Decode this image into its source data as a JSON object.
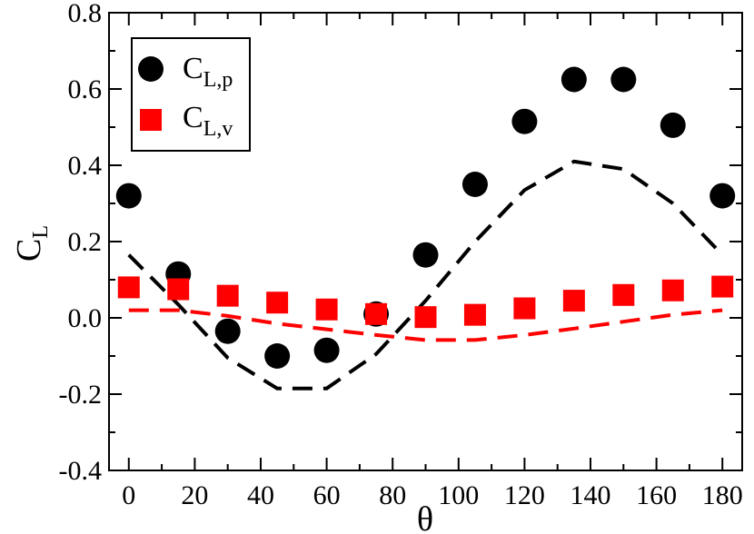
{
  "chart_data": {
    "type": "scatter",
    "title": "",
    "xlabel": "θ",
    "ylabel_main": "C",
    "ylabel_sub": "L",
    "xlim": [
      -6,
      186
    ],
    "ylim": [
      -0.4,
      0.8
    ],
    "x_ticks": [
      0,
      20,
      40,
      60,
      80,
      100,
      120,
      140,
      160,
      180
    ],
    "x_tick_labels": [
      "0",
      "20",
      "40",
      "60",
      "80",
      "100",
      "120",
      "140",
      "160",
      "180"
    ],
    "y_ticks": [
      -0.4,
      -0.2,
      0.0,
      0.2,
      0.4,
      0.6,
      0.8
    ],
    "y_tick_labels": [
      "-0.4",
      "-0.2",
      "0.0",
      "0.2",
      "0.4",
      "0.6",
      "0.8"
    ],
    "grid": false,
    "legend_position": "top-left",
    "series": [
      {
        "name": "C_L,p",
        "label_main": "C",
        "label_sub": "L,p",
        "style": "markers",
        "marker": "circle",
        "color": "#000000",
        "x": [
          0,
          15,
          30,
          45,
          60,
          75,
          90,
          105,
          120,
          135,
          150,
          165,
          180
        ],
        "y": [
          0.32,
          0.115,
          -0.035,
          -0.1,
          -0.085,
          0.01,
          0.165,
          0.35,
          0.515,
          0.625,
          0.625,
          0.505,
          0.32
        ]
      },
      {
        "name": "C_L,v",
        "label_main": "C",
        "label_sub": "L,v",
        "style": "markers",
        "marker": "square",
        "color": "#ff0000",
        "x": [
          0,
          15,
          30,
          45,
          60,
          75,
          90,
          105,
          120,
          135,
          150,
          165,
          180
        ],
        "y": [
          0.08,
          0.075,
          0.058,
          0.04,
          0.022,
          0.01,
          0.002,
          0.008,
          0.025,
          0.045,
          0.06,
          0.072,
          0.082
        ]
      },
      {
        "name": "C_L,p (dashed curve)",
        "style": "dashed-line",
        "color": "#000000",
        "x": [
          0,
          15,
          30,
          45,
          60,
          75,
          90,
          105,
          120,
          135,
          150,
          165,
          180
        ],
        "y": [
          0.165,
          0.035,
          -0.105,
          -0.185,
          -0.185,
          -0.095,
          0.045,
          0.2,
          0.335,
          0.41,
          0.39,
          0.3,
          0.165
        ]
      },
      {
        "name": "C_L,v (dashed curve)",
        "style": "dashed-line",
        "color": "#ff0000",
        "x": [
          0,
          15,
          30,
          45,
          60,
          75,
          90,
          105,
          120,
          135,
          150,
          165,
          180
        ],
        "y": [
          0.02,
          0.02,
          0.005,
          -0.015,
          -0.03,
          -0.045,
          -0.058,
          -0.058,
          -0.045,
          -0.028,
          -0.01,
          0.008,
          0.02
        ]
      }
    ]
  }
}
